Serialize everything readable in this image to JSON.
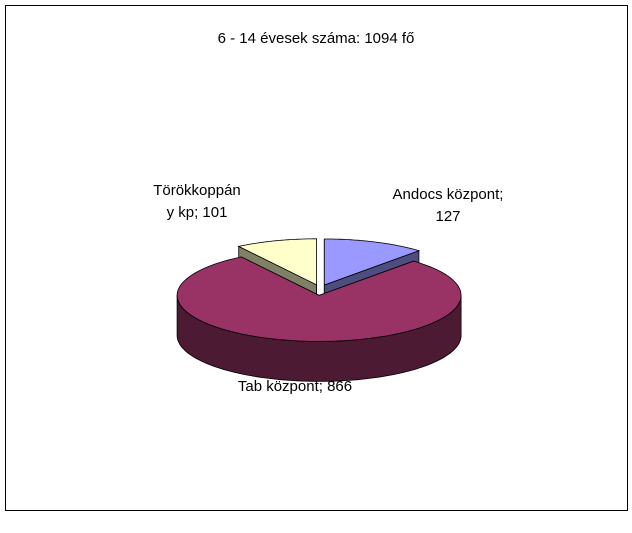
{
  "chart_data": {
    "type": "pie",
    "title": "6 - 14 évesek száma: 1094 fő",
    "values": [
      127,
      866,
      101
    ],
    "value_labels": [
      "Andocs központ; 127",
      "Tab központ; 866",
      "Törökkoppány kp; 101"
    ],
    "colors": [
      "#9999ff",
      "#993366",
      "#ffffcc"
    ],
    "side_colors": [
      "#4d4d80",
      "#4d1a33",
      "#808066"
    ]
  }
}
